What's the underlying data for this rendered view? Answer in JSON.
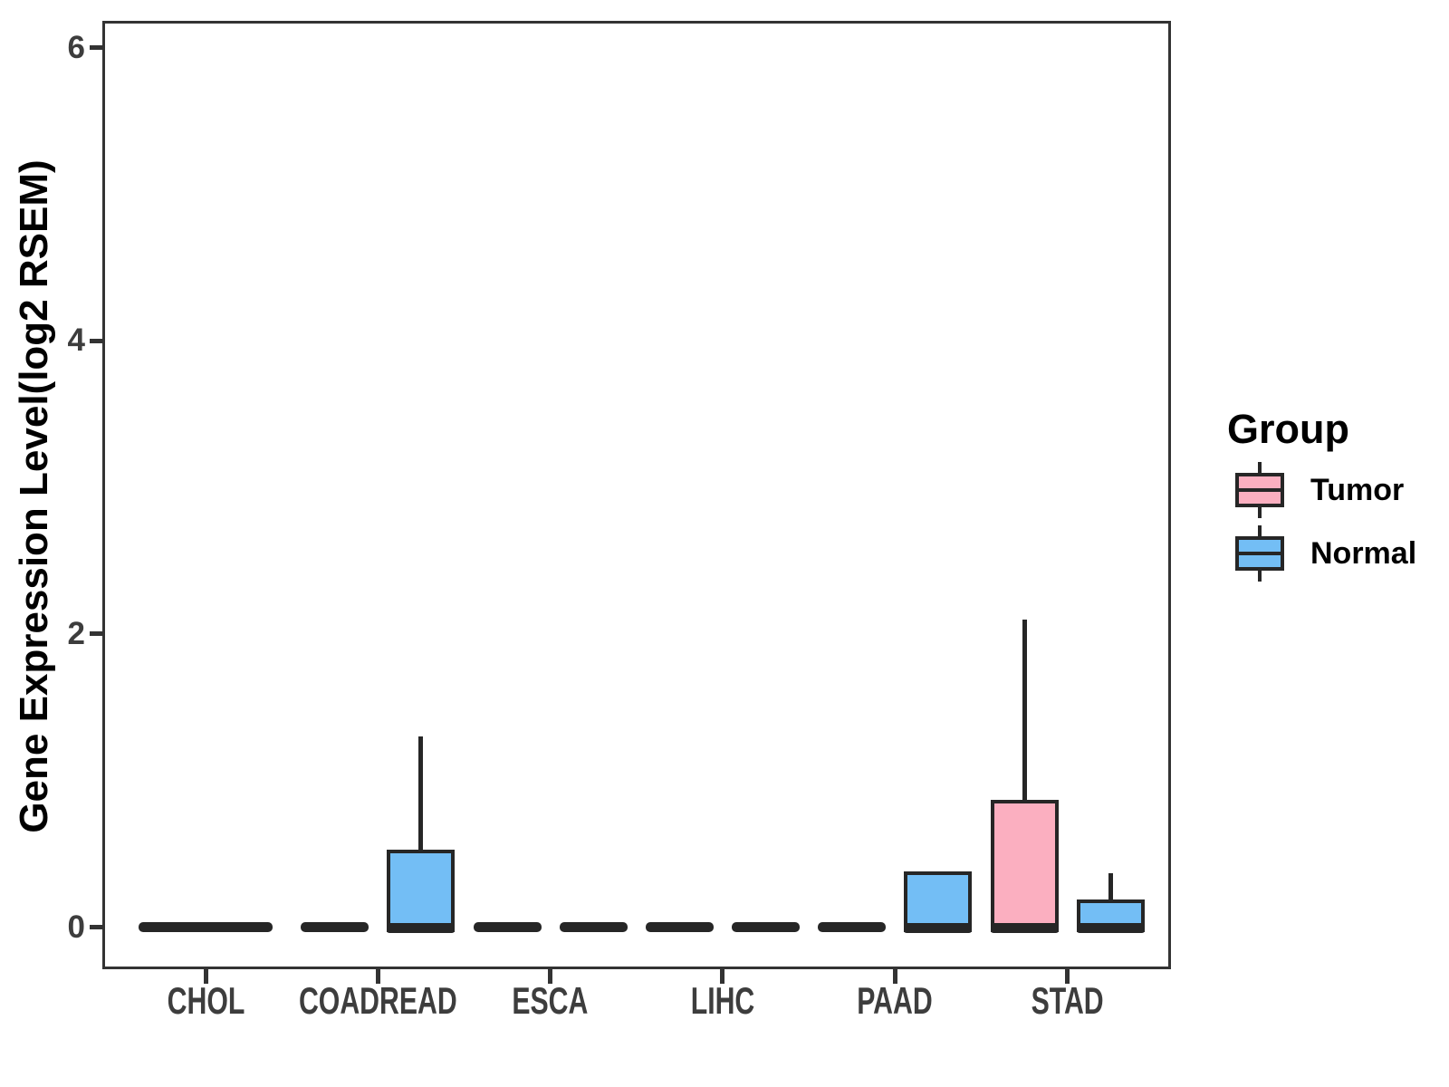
{
  "figure": {
    "background_color": "#FFFFFF"
  },
  "chart_data": {
    "type": "grouped_boxplot",
    "title": "",
    "xlabel": "",
    "ylabel": "Gene Expression Level(log2 RSEM)",
    "categories": [
      "CHOL",
      "COADREAD",
      "ESCA",
      "LIHC",
      "PAAD",
      "STAD"
    ],
    "yticks": [
      0,
      2,
      4,
      6
    ],
    "ylim": [
      -0.28,
      6.19
    ],
    "grid": "off",
    "merged_flat_categories": [
      "CHOL"
    ],
    "series": [
      {
        "name": "Tumor",
        "color": "#FBAFC0",
        "boxes": [
          {
            "category": "CHOL",
            "min": 0,
            "q1": 0,
            "median": 0,
            "q3": 0,
            "max": 0
          },
          {
            "category": "COADREAD",
            "min": 0,
            "q1": 0,
            "median": 0,
            "q3": 0,
            "max": 0
          },
          {
            "category": "ESCA",
            "min": 0,
            "q1": 0,
            "median": 0,
            "q3": 0,
            "max": 0
          },
          {
            "category": "LIHC",
            "min": 0,
            "q1": 0,
            "median": 0,
            "q3": 0,
            "max": 0
          },
          {
            "category": "PAAD",
            "min": 0,
            "q1": 0,
            "median": 0,
            "q3": 0,
            "max": 0
          },
          {
            "category": "STAD",
            "min": 0,
            "q1": 0,
            "median": 0,
            "q3": 0.87,
            "max": 2.1
          }
        ]
      },
      {
        "name": "Normal",
        "color": "#73BEF5",
        "boxes": [
          {
            "category": "CHOL",
            "min": 0,
            "q1": 0,
            "median": 0,
            "q3": 0,
            "max": 0
          },
          {
            "category": "COADREAD",
            "min": 0,
            "q1": 0,
            "median": 0,
            "q3": 0.53,
            "max": 1.3
          },
          {
            "category": "ESCA",
            "min": 0,
            "q1": 0,
            "median": 0,
            "q3": 0,
            "max": 0
          },
          {
            "category": "LIHC",
            "min": 0,
            "q1": 0,
            "median": 0,
            "q3": 0,
            "max": 0
          },
          {
            "category": "PAAD",
            "min": 0,
            "q1": 0,
            "median": 0,
            "q3": 0.38,
            "max": 0.38
          },
          {
            "category": "STAD",
            "min": 0,
            "q1": 0,
            "median": 0,
            "q3": 0.19,
            "max": 0.37
          }
        ]
      }
    ],
    "legend": {
      "title": "Group",
      "position": "right",
      "entries": [
        {
          "label": "Tumor",
          "color": "#FBAFC0"
        },
        {
          "label": "Normal",
          "color": "#73BEF5"
        }
      ]
    },
    "style_colors": {
      "box_border": "#262626",
      "panel_frame": "#333333",
      "axis_tick_text": "#3D3D3D",
      "axis_title_text": "#000000"
    }
  }
}
